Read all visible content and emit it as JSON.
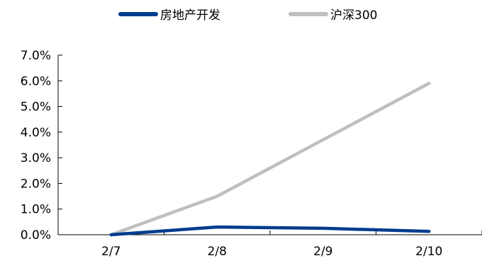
{
  "chart_data": {
    "type": "line",
    "categories": [
      "2/7",
      "2/8",
      "2/9",
      "2/10"
    ],
    "series": [
      {
        "name": "房地产开发",
        "values": [
          0.0,
          0.3,
          0.25,
          0.13
        ],
        "color": "#003D8F"
      },
      {
        "name": "沪深300",
        "values": [
          0.0,
          1.5,
          3.7,
          5.9
        ],
        "color": "#BFBFBF"
      }
    ],
    "y_ticks": [
      "0.0%",
      "1.0%",
      "2.0%",
      "3.0%",
      "4.0%",
      "5.0%",
      "6.0%",
      "7.0%"
    ],
    "ylim": [
      0,
      7
    ],
    "legend_position": "top-center",
    "grid": false
  }
}
